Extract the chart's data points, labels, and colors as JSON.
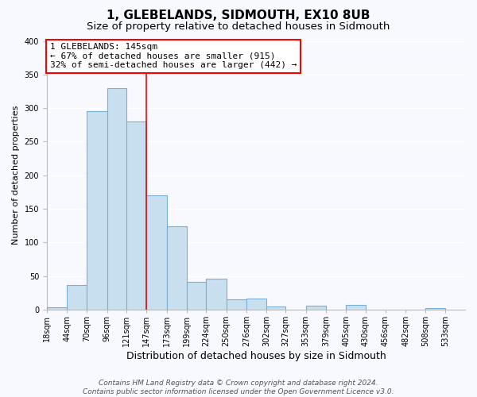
{
  "title": "1, GLEBELANDS, SIDMOUTH, EX10 8UB",
  "subtitle": "Size of property relative to detached houses in Sidmouth",
  "xlabel": "Distribution of detached houses by size in Sidmouth",
  "ylabel": "Number of detached properties",
  "bar_left_edges": [
    18,
    44,
    70,
    96,
    121,
    147,
    173,
    199,
    224,
    250,
    276,
    302,
    327,
    353,
    379,
    405,
    430,
    456,
    482,
    508
  ],
  "bar_heights": [
    4,
    37,
    296,
    330,
    280,
    170,
    124,
    42,
    46,
    16,
    17,
    5,
    0,
    6,
    0,
    7,
    0,
    0,
    0,
    3
  ],
  "bar_widths": [
    26,
    26,
    26,
    25,
    26,
    26,
    26,
    25,
    26,
    26,
    26,
    25,
    26,
    26,
    26,
    25,
    26,
    26,
    26,
    25
  ],
  "bar_color": "#c8dff0",
  "bar_edgecolor": "#7aafd4",
  "vline_x": 147,
  "vline_color": "red",
  "ylim": [
    0,
    400
  ],
  "yticks": [
    0,
    50,
    100,
    150,
    200,
    250,
    300,
    350,
    400
  ],
  "x_tick_labels": [
    "18sqm",
    "44sqm",
    "70sqm",
    "96sqm",
    "121sqm",
    "147sqm",
    "173sqm",
    "199sqm",
    "224sqm",
    "250sqm",
    "276sqm",
    "302sqm",
    "327sqm",
    "353sqm",
    "379sqm",
    "405sqm",
    "430sqm",
    "456sqm",
    "482sqm",
    "508sqm",
    "533sqm"
  ],
  "x_tick_positions": [
    18,
    44,
    70,
    96,
    121,
    147,
    173,
    199,
    224,
    250,
    276,
    302,
    327,
    353,
    379,
    405,
    430,
    456,
    482,
    508,
    533
  ],
  "annotation_title": "1 GLEBELANDS: 145sqm",
  "annotation_line1": "← 67% of detached houses are smaller (915)",
  "annotation_line2": "32% of semi-detached houses are larger (442) →",
  "annotation_box_facecolor": "white",
  "annotation_box_edgecolor": "red",
  "footer_line1": "Contains HM Land Registry data © Crown copyright and database right 2024.",
  "footer_line2": "Contains public sector information licensed under the Open Government Licence v3.0.",
  "background_color": "#f7f9ff",
  "plot_bg_color": "#f7f9ff",
  "grid_color": "white",
  "title_fontsize": 11,
  "subtitle_fontsize": 9.5,
  "xlabel_fontsize": 9,
  "ylabel_fontsize": 8,
  "tick_fontsize": 7,
  "annotation_fontsize": 8,
  "footer_fontsize": 6.5
}
